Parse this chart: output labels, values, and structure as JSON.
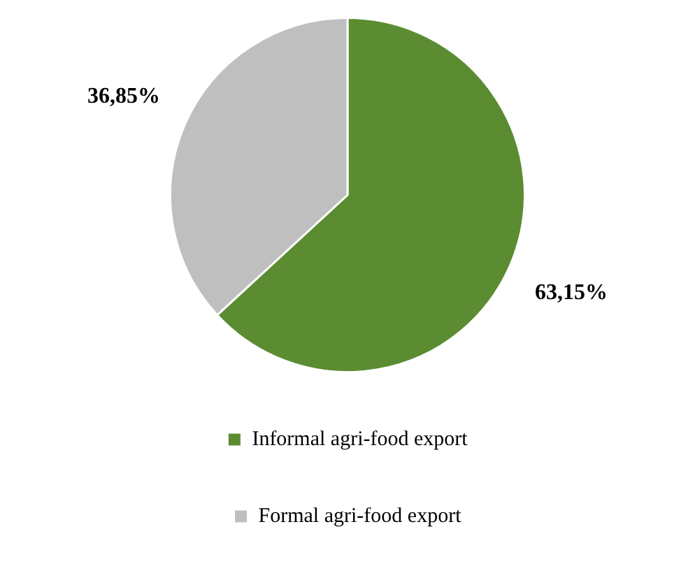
{
  "chart_data": {
    "type": "pie",
    "categories": [
      "Informal agri-food export",
      "Formal agri-food export"
    ],
    "values": [
      63.15,
      36.85
    ],
    "colors": [
      "#5b8c32",
      "#bfbfbf"
    ],
    "value_labels": [
      "63,15%",
      "36,85%"
    ],
    "legend": "bottom"
  }
}
